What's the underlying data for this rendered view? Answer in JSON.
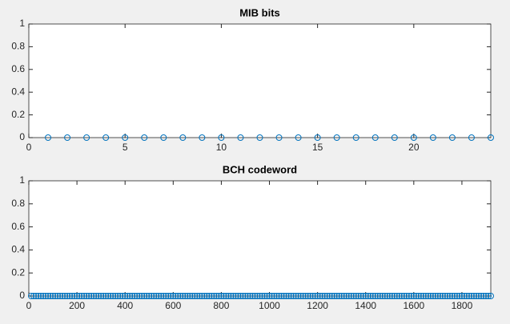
{
  "chart_data": [
    {
      "type": "stem",
      "title": "MIB bits",
      "color": "#0072bd",
      "x": [
        1,
        2,
        3,
        4,
        5,
        6,
        7,
        8,
        9,
        10,
        11,
        12,
        13,
        14,
        15,
        16,
        17,
        18,
        19,
        20,
        21,
        22,
        23,
        24
      ],
      "values": [
        0,
        0,
        0,
        0,
        0,
        0,
        0,
        0,
        0,
        0,
        0,
        0,
        0,
        0,
        0,
        0,
        0,
        0,
        0,
        0,
        0,
        0,
        0,
        0
      ],
      "xlim": [
        0,
        24
      ],
      "xticks": [
        0,
        5,
        10,
        15,
        20
      ],
      "ylim": [
        0,
        1
      ],
      "yticks": [
        0,
        0.2,
        0.4,
        0.6,
        0.8,
        1
      ]
    },
    {
      "type": "stem",
      "title": "BCH codeword",
      "color": "#0072bd",
      "x": [
        10,
        20,
        30,
        40,
        50,
        60,
        70,
        80,
        90,
        100,
        110,
        120,
        130,
        140,
        150,
        160,
        170,
        180,
        190,
        200,
        210,
        220,
        230,
        240,
        250,
        260,
        270,
        280,
        290,
        300,
        310,
        320,
        330,
        340,
        350,
        360,
        370,
        380,
        390,
        400,
        410,
        420,
        430,
        440,
        450,
        460,
        470,
        480,
        490,
        500,
        510,
        520,
        530,
        540,
        550,
        560,
        570,
        580,
        590,
        600,
        610,
        620,
        630,
        640,
        650,
        660,
        670,
        680,
        690,
        700,
        710,
        720,
        730,
        740,
        750,
        760,
        770,
        780,
        790,
        800,
        810,
        820,
        830,
        840,
        850,
        860,
        870,
        880,
        890,
        900,
        910,
        920,
        930,
        940,
        950,
        960,
        970,
        980,
        990,
        1000,
        1010,
        1020,
        1030,
        1040,
        1050,
        1060,
        1070,
        1080,
        1090,
        1100,
        1110,
        1120,
        1130,
        1140,
        1150,
        1160,
        1170,
        1180,
        1190,
        1200,
        1210,
        1220,
        1230,
        1240,
        1250,
        1260,
        1270,
        1280,
        1290,
        1300,
        1310,
        1320,
        1330,
        1340,
        1350,
        1360,
        1370,
        1380,
        1390,
        1400,
        1410,
        1420,
        1430,
        1440,
        1450,
        1460,
        1470,
        1480,
        1490,
        1500,
        1510,
        1520,
        1530,
        1540,
        1550,
        1560,
        1570,
        1580,
        1590,
        1600,
        1610,
        1620,
        1630,
        1640,
        1650,
        1660,
        1670,
        1680,
        1690,
        1700,
        1710,
        1720,
        1730,
        1740,
        1750,
        1760,
        1770,
        1780,
        1790,
        1800,
        1810,
        1820,
        1830,
        1840,
        1850,
        1860,
        1870,
        1880,
        1890,
        1900,
        1910,
        1920
      ],
      "values": [
        0,
        0,
        0,
        0,
        0,
        0,
        0,
        0,
        0,
        0,
        0,
        0,
        0,
        0,
        0,
        0,
        0,
        0,
        0,
        0,
        0,
        0,
        0,
        0,
        0,
        0,
        0,
        0,
        0,
        0,
        0,
        0,
        0,
        0,
        0,
        0,
        0,
        0,
        0,
        0,
        0,
        0,
        0,
        0,
        0,
        0,
        0,
        0,
        0,
        0,
        0,
        0,
        0,
        0,
        0,
        0,
        0,
        0,
        0,
        0,
        0,
        0,
        0,
        0,
        0,
        0,
        0,
        0,
        0,
        0,
        0,
        0,
        0,
        0,
        0,
        0,
        0,
        0,
        0,
        0,
        0,
        0,
        0,
        0,
        0,
        0,
        0,
        0,
        0,
        0,
        0,
        0,
        0,
        0,
        0,
        0,
        0,
        0,
        0,
        0,
        0,
        0,
        0,
        0,
        0,
        0,
        0,
        0,
        0,
        0,
        0,
        0,
        0,
        0,
        0,
        0,
        0,
        0,
        0,
        0,
        0,
        0,
        0,
        0,
        0,
        0,
        0,
        0,
        0,
        0,
        0,
        0,
        0,
        0,
        0,
        0,
        0,
        0,
        0,
        0,
        0,
        0,
        0,
        0,
        0,
        0,
        0,
        0,
        0,
        0,
        0,
        0,
        0,
        0,
        0,
        0,
        0,
        0,
        0,
        0,
        0,
        0,
        0,
        0,
        0,
        0,
        0,
        0,
        0,
        0,
        0,
        0,
        0,
        0,
        0,
        0,
        0,
        0,
        0,
        0,
        0,
        0,
        0,
        0,
        0,
        0,
        0,
        0,
        0,
        0,
        0,
        0
      ],
      "xlim": [
        0,
        1920
      ],
      "xticks": [
        0,
        200,
        400,
        600,
        800,
        1000,
        1200,
        1400,
        1600,
        1800
      ],
      "ylim": [
        0,
        1
      ],
      "yticks": [
        0,
        0.2,
        0.4,
        0.6,
        0.8,
        1
      ]
    }
  ]
}
